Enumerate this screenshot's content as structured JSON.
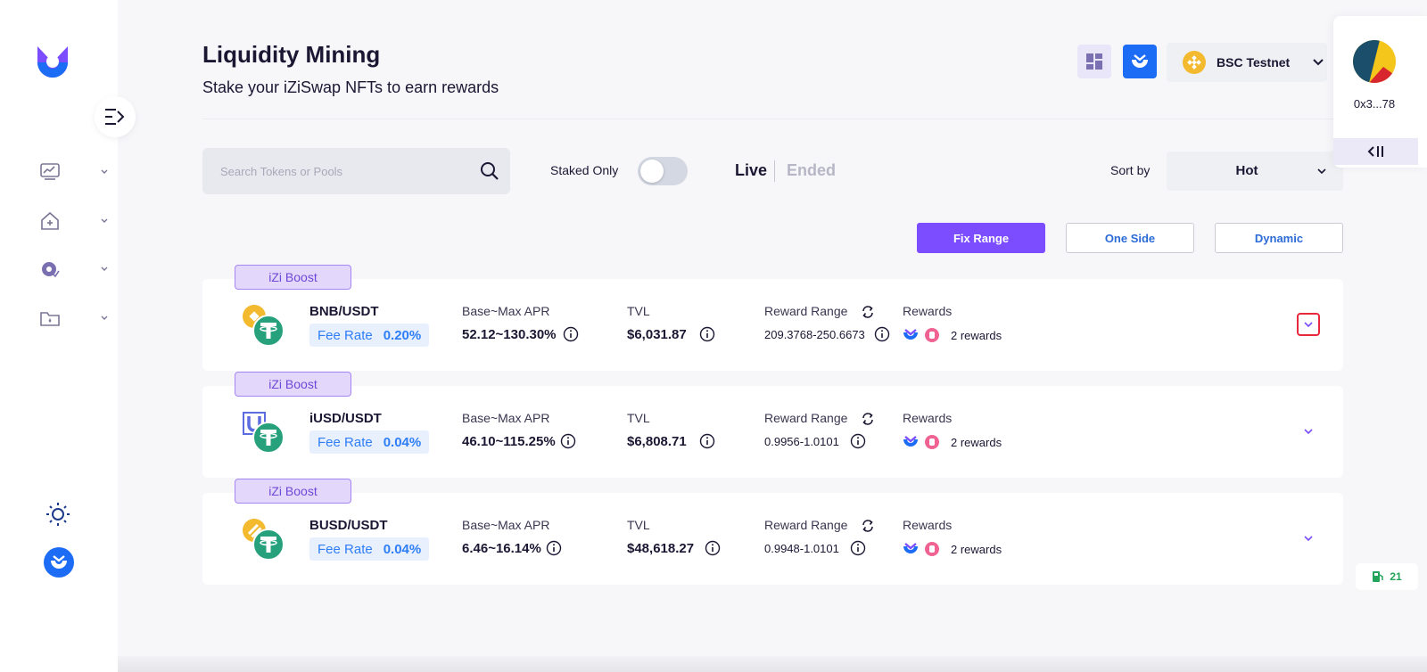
{
  "header": {
    "title": "Liquidity Mining",
    "subtitle": "Stake your iZiSwap NFTs to earn rewards"
  },
  "network": {
    "label": "BSC Testnet"
  },
  "wallet": {
    "address": "0x3...78"
  },
  "filters": {
    "search_placeholder": "Search Tokens or Pools",
    "staked_only_label": "Staked Only",
    "staked_only_on": false,
    "tab_live": "Live",
    "tab_ended": "Ended",
    "sort_label": "Sort by",
    "sort_value": "Hot",
    "range_buttons": [
      "Fix Range",
      "One Side",
      "Dynamic"
    ],
    "range_selected": "Fix Range"
  },
  "columns": {
    "apr": "Base~Max APR",
    "tvl": "TVL",
    "reward_range": "Reward Range",
    "rewards": "Rewards"
  },
  "pools": [
    {
      "badge": "iZi Boost",
      "pair": "BNB/USDT",
      "fee_label": "Fee Rate",
      "fee": "0.20%",
      "apr": "52.12~130.30%",
      "tvl": "$6,031.87",
      "reward_range": "209.3768-250.6673",
      "rewards": "2 rewards"
    },
    {
      "badge": "iZi Boost",
      "pair": "iUSD/USDT",
      "fee_label": "Fee Rate",
      "fee": "0.04%",
      "apr": "46.10~115.25%",
      "tvl": "$6,808.71",
      "reward_range": "0.9956-1.0101",
      "rewards": "2 rewards"
    },
    {
      "badge": "iZi Boost",
      "pair": "BUSD/USDT",
      "fee_label": "Fee Rate",
      "fee": "0.04%",
      "apr": "6.46~16.14%",
      "tvl": "$48,618.27",
      "reward_range": "0.9948-1.0101",
      "rewards": "2 rewards"
    }
  ],
  "gas": {
    "value": "21"
  },
  "colors": {
    "accent_purple": "#7b4dff",
    "brand_blue": "#1d6cf5",
    "fee_blue": "#2e7ef7",
    "highlight_red": "#e8283d",
    "gas_green": "#23a45a"
  },
  "icons": {
    "sidebar": [
      "logo-icon",
      "menu-collapse-icon",
      "trade-icon",
      "liquidity-icon",
      "mining-icon",
      "portfolio-icon",
      "sun-icon",
      "izi-icon"
    ],
    "tokens": [
      "bnb-icon",
      "usdt-icon",
      "iusd-icon",
      "busd-icon"
    ],
    "rewards": [
      "izi-reward-icon",
      "pink-reward-icon"
    ]
  }
}
